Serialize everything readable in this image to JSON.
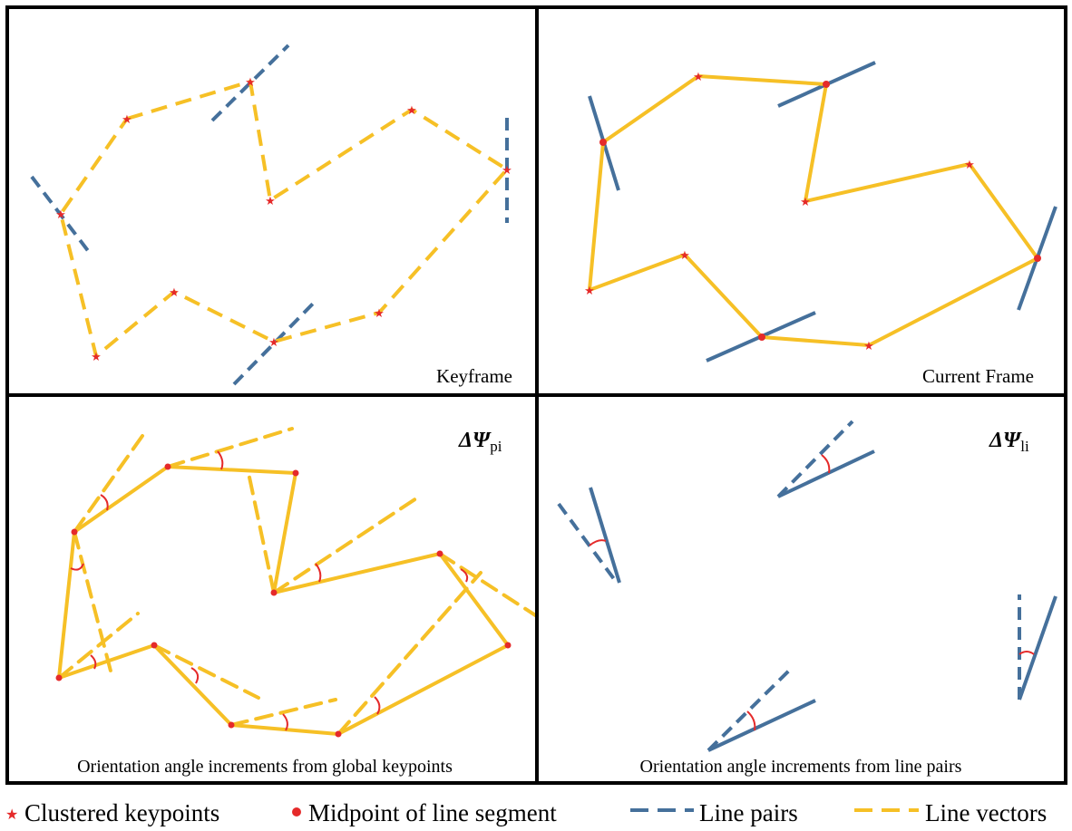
{
  "colors": {
    "keypoint": "#e52a2a",
    "line_pair": "#45709b",
    "line_vector": "#f6c026",
    "angle_arc": "#e52a2a",
    "frame": "#000000"
  },
  "panels": {
    "top_left": {
      "label": "Keyframe"
    },
    "top_right": {
      "label": "Current Frame"
    },
    "bottom_left": {
      "symbol": "ΔΨ",
      "subscript": "pi",
      "caption": "Orientation angle increments from global keypoints"
    },
    "bottom_right": {
      "symbol": "ΔΨ",
      "subscript": "li",
      "caption": "Orientation angle increments from line pairs"
    }
  },
  "legend": {
    "keypoints": {
      "icon": "star-icon",
      "label": "Clustered keypoints"
    },
    "midpoint": {
      "icon": "dot-icon",
      "label": "Midpoint of line segment"
    },
    "line_pairs": {
      "icon": "dashed-blue-line-icon",
      "label": "Line pairs"
    },
    "line_vectors": {
      "icon": "dashed-yellow-line-icon",
      "label": "Line vectors"
    }
  }
}
